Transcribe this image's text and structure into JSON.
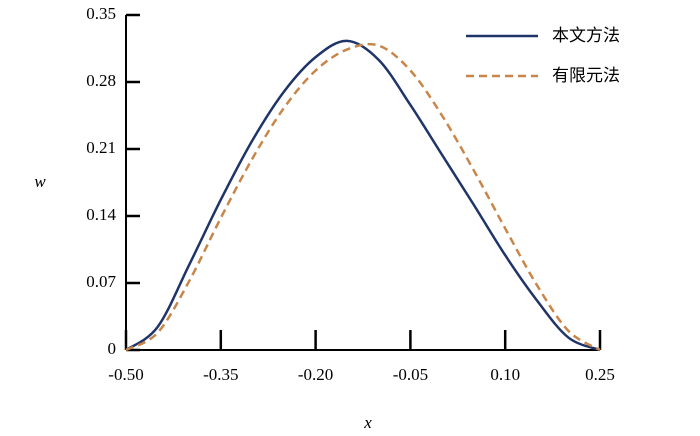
{
  "chart_data": {
    "type": "line",
    "x_label": "x",
    "y_label": "w",
    "x": [
      -0.5,
      -0.45,
      -0.4,
      -0.35,
      -0.3,
      -0.25,
      -0.2,
      -0.15,
      -0.1,
      -0.05,
      0.0,
      0.05,
      0.1,
      0.15,
      0.2,
      0.25
    ],
    "series": [
      {
        "name": "本文方法",
        "color": "#1f3468",
        "dash": "solid",
        "values": [
          0,
          0.024,
          0.089,
          0.157,
          0.219,
          0.27,
          0.306,
          0.323,
          0.303,
          0.256,
          0.204,
          0.152,
          0.099,
          0.052,
          0.013,
          0
        ]
      },
      {
        "name": "有限元法",
        "color": "#c8864a",
        "dash": "dashed",
        "values": [
          0,
          0.018,
          0.072,
          0.138,
          0.2,
          0.253,
          0.292,
          0.314,
          0.318,
          0.292,
          0.245,
          0.188,
          0.127,
          0.068,
          0.02,
          0
        ]
      }
    ],
    "xlim": [
      -0.5,
      0.25
    ],
    "xticks": [
      {
        "value": -0.5,
        "label": "-0.50"
      },
      -0.35,
      {
        "value": -0.2,
        "label": "-0.20"
      },
      -0.05,
      {
        "value": 0.1,
        "label": "0.10"
      },
      0.25
    ],
    "ylim": [
      0,
      0.35
    ],
    "yticks": [
      0,
      0.07,
      0.14,
      0.21,
      0.28,
      0.35
    ],
    "legend": "upper right",
    "grid": false
  }
}
